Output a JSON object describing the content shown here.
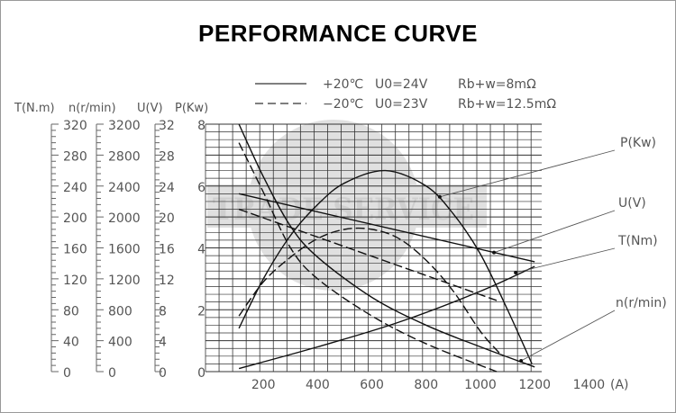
{
  "chart_data": {
    "type": "line",
    "title": "PERFORMANCE CURVE",
    "xlabel": "(A)",
    "x_ticks": [
      200,
      400,
      600,
      800,
      1000,
      1200,
      1400
    ],
    "xlim": [
      0,
      1400
    ],
    "grid": true,
    "legend": [
      {
        "style": "solid",
        "temp": "+20℃",
        "u0": "U0=24V",
        "r": "Rb+w=8mΩ"
      },
      {
        "style": "dashed",
        "temp": "−20℃",
        "u0": "U0=23V",
        "r": "Rb+w=12.5mΩ"
      }
    ],
    "axes": [
      {
        "name": "T",
        "label": "T(N.m)",
        "ticks": [
          "320",
          "280",
          "240",
          "200",
          "160",
          "120",
          "80",
          "40",
          "0"
        ],
        "range": [
          0,
          320
        ]
      },
      {
        "name": "n",
        "label": "n(r/min)",
        "ticks": [
          "3200",
          "2800",
          "2400",
          "2000",
          "1600",
          "1200",
          "800",
          "400",
          "0"
        ],
        "range": [
          0,
          3200
        ]
      },
      {
        "name": "U",
        "label": "U(V)",
        "ticks": [
          "32",
          "28",
          "24",
          "20",
          "16",
          "12",
          "8",
          "4",
          "0"
        ],
        "range": [
          0,
          32
        ]
      },
      {
        "name": "P",
        "label": "P(Kw)",
        "ticks": [
          "8",
          "6",
          "4",
          "2",
          "0"
        ],
        "range": [
          0,
          8
        ]
      }
    ],
    "callouts": [
      "P(Kw)",
      "U(V)",
      "T(Nm)",
      "n(r/min)"
    ],
    "series": [
      {
        "name": "n +20C",
        "style": "solid",
        "points": [
          [
            110,
            8.0
          ],
          [
            200,
            6.3
          ],
          [
            300,
            4.7
          ],
          [
            400,
            3.7
          ],
          [
            600,
            2.4
          ],
          [
            800,
            1.5
          ],
          [
            1000,
            0.8
          ],
          [
            1200,
            0.15
          ]
        ]
      },
      {
        "name": "n -20C",
        "style": "dashed",
        "points": [
          [
            110,
            7.4
          ],
          [
            200,
            5.8
          ],
          [
            300,
            4.0
          ],
          [
            400,
            3.0
          ],
          [
            600,
            1.8
          ],
          [
            800,
            0.9
          ],
          [
            1060,
            0.0
          ]
        ]
      },
      {
        "name": "P +20C",
        "style": "solid",
        "points": [
          [
            110,
            1.4
          ],
          [
            200,
            3.0
          ],
          [
            300,
            4.4
          ],
          [
            400,
            5.4
          ],
          [
            500,
            6.1
          ],
          [
            650,
            6.5
          ],
          [
            800,
            6.0
          ],
          [
            900,
            5.1
          ],
          [
            1000,
            3.8
          ],
          [
            1100,
            2.0
          ],
          [
            1190,
            0.25
          ]
        ]
      },
      {
        "name": "P -20C",
        "style": "dashed",
        "points": [
          [
            110,
            1.8
          ],
          [
            200,
            2.9
          ],
          [
            300,
            3.7
          ],
          [
            400,
            4.3
          ],
          [
            500,
            4.6
          ],
          [
            600,
            4.6
          ],
          [
            700,
            4.3
          ],
          [
            800,
            3.6
          ],
          [
            900,
            2.6
          ],
          [
            1000,
            1.3
          ],
          [
            1070,
            0.6
          ]
        ]
      },
      {
        "name": "U +20C",
        "style": "solid",
        "points": [
          [
            110,
            5.75
          ],
          [
            1200,
            3.55
          ]
        ]
      },
      {
        "name": "U -20C",
        "style": "dashed",
        "points": [
          [
            110,
            5.25
          ],
          [
            1060,
            2.3
          ]
        ]
      },
      {
        "name": "T +20C",
        "style": "solid",
        "points": [
          [
            110,
            0.1
          ],
          [
            400,
            0.8
          ],
          [
            700,
            1.6
          ],
          [
            1000,
            2.6
          ],
          [
            1200,
            3.4
          ]
        ]
      }
    ],
    "watermark": "TRADE SERVICE"
  }
}
